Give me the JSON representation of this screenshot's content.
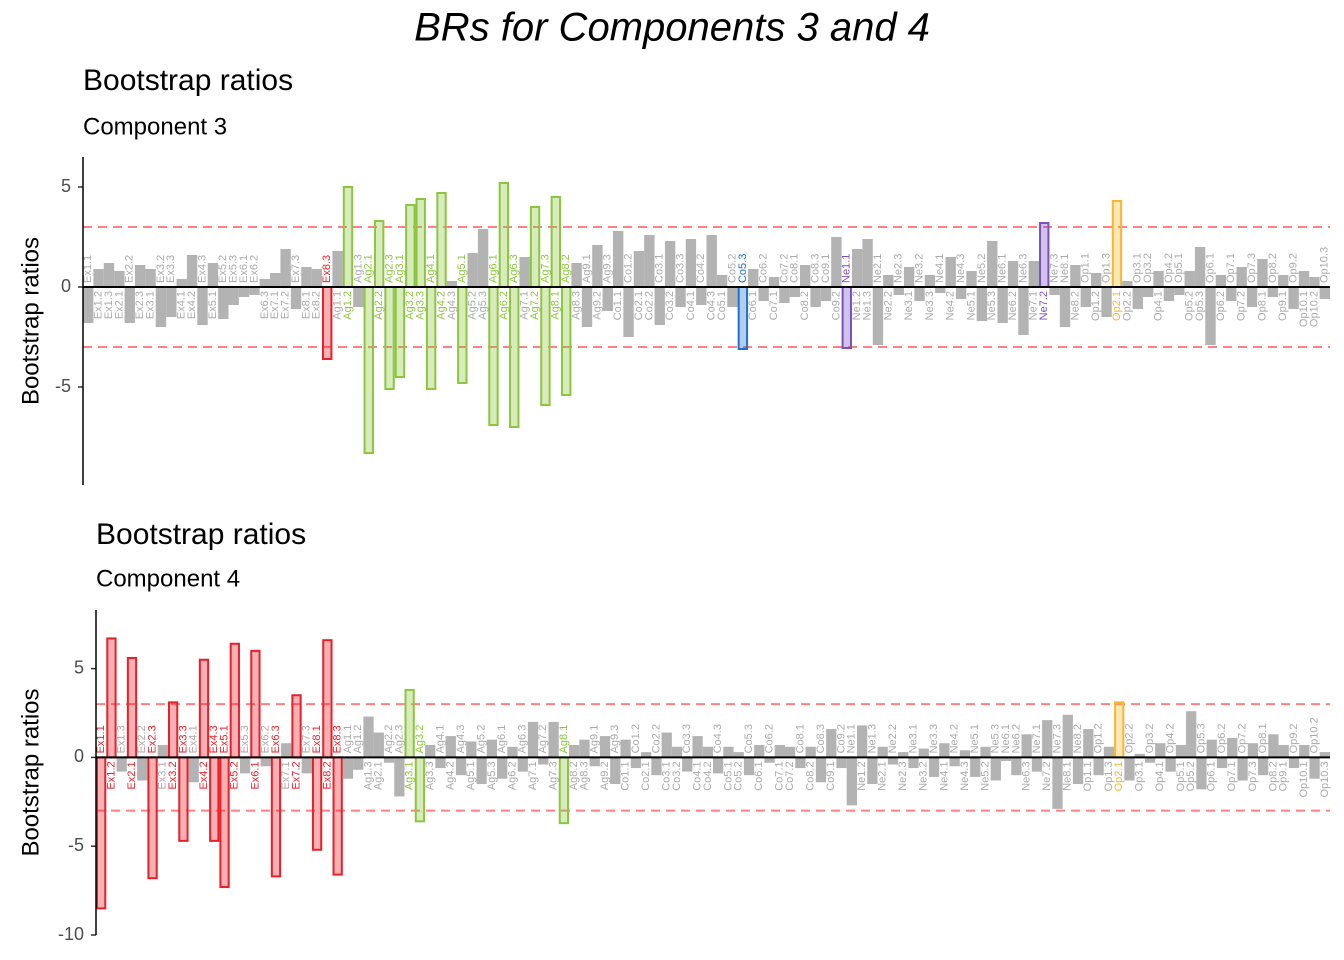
{
  "title": "BRs for Components 3 and 4",
  "chart_data": [
    {
      "type": "bar",
      "title": "Bootstrap ratios",
      "subtitle": "Component 3",
      "y_label": "Bootstrap ratios",
      "categories": [
        "Ex1.1",
        "Ex1.2",
        "Ex1.3",
        "Ex2.1",
        "Ex2.2",
        "Ex2.3",
        "Ex3.1",
        "Ex3.2",
        "Ex3.3",
        "Ex4.1",
        "Ex4.2",
        "Ex4.3",
        "Ex5.1",
        "Ex5.2",
        "Ex5.3",
        "Ex6.1",
        "Ex6.2",
        "Ex6.3",
        "Ex7.1",
        "Ex7.2",
        "Ex7.3",
        "Ex8.1",
        "Ex8.2",
        "Ex8.3",
        "Ag1.1",
        "Ag1.2",
        "Ag1.3",
        "Ag2.1",
        "Ag2.2",
        "Ag2.3",
        "Ag3.1",
        "Ag3.2",
        "Ag3.3",
        "Ag4.1",
        "Ag4.2",
        "Ag4.3",
        "Ag5.1",
        "Ag5.2",
        "Ag5.3",
        "Ag6.1",
        "Ag6.2",
        "Ag6.3",
        "Ag7.1",
        "Ag7.2",
        "Ag7.3",
        "Ag8.1",
        "Ag8.2",
        "Ag8.3",
        "Ag9.1",
        "Ag9.2",
        "Ag9.3",
        "Co1.1",
        "Co1.2",
        "Co2.1",
        "Co2.2",
        "Co3.1",
        "Co3.2",
        "Co3.3",
        "Co4.1",
        "Co4.2",
        "Co4.3",
        "Co5.1",
        "Co5.2",
        "Co5.3",
        "Co6.1",
        "Co6.2",
        "Co7.1",
        "Co7.2",
        "Co8.1",
        "Co8.2",
        "Co8.3",
        "Co9.1",
        "Co9.2",
        "Ne1.1",
        "Ne1.2",
        "Ne1.3",
        "Ne2.1",
        "Ne2.2",
        "Ne2.3",
        "Ne3.1",
        "Ne3.2",
        "Ne3.3",
        "Ne4.1",
        "Ne4.2",
        "Ne4.3",
        "Ne5.1",
        "Ne5.2",
        "Ne5.3",
        "Ne6.1",
        "Ne6.2",
        "Ne6.3",
        "Ne7.1",
        "Ne7.2",
        "Ne7.3",
        "Ne8.1",
        "Ne8.2",
        "Op1.1",
        "Op1.2",
        "Op1.3",
        "Op2.1",
        "Op2.2",
        "Op3.1",
        "Op3.2",
        "Op4.1",
        "Op4.2",
        "Op5.1",
        "Op5.2",
        "Op5.3",
        "Op6.1",
        "Op6.2",
        "Op7.1",
        "Op7.2",
        "Op7.3",
        "Op8.1",
        "Op8.2",
        "Op9.1",
        "Op9.2",
        "Op10.1",
        "Op10.2",
        "Op10.3"
      ],
      "values": [
        -1.8,
        0.9,
        1.2,
        0.8,
        -1.8,
        1.1,
        0.9,
        -2.0,
        -1.5,
        0.4,
        1.6,
        -1.9,
        1.2,
        -1.6,
        -0.9,
        -0.5,
        -0.4,
        0.4,
        0.7,
        1.9,
        -1.1,
        1.0,
        0.9,
        -3.6,
        1.8,
        5.0,
        -1.0,
        -8.3,
        3.3,
        -5.1,
        -4.5,
        4.1,
        4.4,
        -5.1,
        4.7,
        0.3,
        -4.8,
        1.7,
        2.9,
        -6.9,
        5.2,
        -7.0,
        1.5,
        4.0,
        -5.9,
        4.5,
        -5.4,
        1.2,
        -2.0,
        2.1,
        -1.2,
        2.8,
        -2.5,
        1.8,
        2.6,
        -1.9,
        2.3,
        -1.0,
        2.4,
        -0.9,
        2.6,
        0.6,
        -1.0,
        -3.1,
        0.9,
        -0.7,
        0.5,
        -0.8,
        -0.5,
        1.1,
        -1.0,
        -0.7,
        2.5,
        -3.05,
        1.9,
        2.4,
        -2.9,
        0.6,
        -0.4,
        1.0,
        -0.7,
        0.6,
        -0.3,
        1.5,
        -0.6,
        0.8,
        -1.7,
        2.3,
        -1.8,
        1.3,
        -2.4,
        1.3,
        3.2,
        -0.4,
        -2.0,
        1.1,
        -1.0,
        0.7,
        -1.5,
        4.3,
        0.3,
        -1.1,
        -0.5,
        0.8,
        -0.7,
        -0.4,
        0.8,
        2.0,
        -2.9,
        0.6,
        -0.7,
        1.0,
        -1.0,
        1.4,
        -0.5,
        0.6,
        -1.1,
        0.8,
        0.5,
        -0.6
      ],
      "ylim": [
        -9.9,
        6.5
      ],
      "yticks": [
        -5,
        0,
        5
      ],
      "thresholds": [
        -3,
        3
      ],
      "group_colors": {
        "Ex": "#e8202a",
        "Ag": "#8cc63f",
        "Co": "#1f6fd0",
        "Ne": "#7b4fc0",
        "Op": "#f5b82e"
      },
      "neutral_color": "#b3b3b3"
    },
    {
      "type": "bar",
      "title": "Bootstrap ratios",
      "subtitle": "Component 4",
      "y_label": "Bootstrap ratios",
      "categories": [
        "Ex1.1",
        "Ex1.2",
        "Ex1.3",
        "Ex2.1",
        "Ex2.2",
        "Ex2.3",
        "Ex3.1",
        "Ex3.2",
        "Ex3.3",
        "Ex4.1",
        "Ex4.2",
        "Ex4.3",
        "Ex5.1",
        "Ex5.2",
        "Ex5.3",
        "Ex6.1",
        "Ex6.2",
        "Ex6.3",
        "Ex7.1",
        "Ex7.2",
        "Ex7.3",
        "Ex8.1",
        "Ex8.2",
        "Ex8.3",
        "Ag1.1",
        "Ag1.2",
        "Ag1.3",
        "Ag2.1",
        "Ag2.2",
        "Ag2.3",
        "Ag3.1",
        "Ag3.2",
        "Ag3.3",
        "Ag4.1",
        "Ag4.2",
        "Ag4.3",
        "Ag5.1",
        "Ag5.2",
        "Ag5.3",
        "Ag6.1",
        "Ag6.2",
        "Ag6.3",
        "Ag7.1",
        "Ag7.2",
        "Ag7.3",
        "Ag8.1",
        "Ag8.2",
        "Ag8.3",
        "Ag9.1",
        "Ag9.2",
        "Ag9.3",
        "Co1.1",
        "Co1.2",
        "Co2.1",
        "Co2.2",
        "Co3.1",
        "Co3.2",
        "Co3.3",
        "Co4.1",
        "Co4.2",
        "Co4.3",
        "Co5.1",
        "Co5.2",
        "Co5.3",
        "Co6.1",
        "Co6.2",
        "Co7.1",
        "Co7.2",
        "Co8.1",
        "Co8.2",
        "Co8.3",
        "Co9.1",
        "Co9.2",
        "Ne1.1",
        "Ne1.2",
        "Ne1.3",
        "Ne2.1",
        "Ne2.2",
        "Ne2.3",
        "Ne3.1",
        "Ne3.2",
        "Ne3.3",
        "Ne4.1",
        "Ne4.2",
        "Ne4.3",
        "Ne5.1",
        "Ne5.2",
        "Ne5.3",
        "Ne6.1",
        "Ne6.2",
        "Ne6.3",
        "Ne7.1",
        "Ne7.2",
        "Ne7.3",
        "Ne8.1",
        "Ne8.2",
        "Op1.1",
        "Op1.2",
        "Op1.3",
        "Op2.1",
        "Op2.2",
        "Op3.1",
        "Op3.2",
        "Op4.1",
        "Op4.2",
        "Op5.1",
        "Op5.2",
        "Op5.3",
        "Op6.1",
        "Op6.2",
        "Op7.1",
        "Op7.2",
        "Op7.3",
        "Op8.1",
        "Op8.2",
        "Op9.1",
        "Op9.2",
        "Op10.1",
        "Op10.2",
        "Op10.3"
      ],
      "values": [
        -8.5,
        6.7,
        -0.8,
        5.6,
        -1.3,
        -6.8,
        0.7,
        3.1,
        -4.7,
        -1.4,
        5.5,
        -4.7,
        -7.3,
        6.4,
        -0.9,
        6.0,
        -0.5,
        -6.7,
        0.8,
        3.5,
        -0.9,
        -5.2,
        6.6,
        -6.6,
        -1.2,
        -0.7,
        2.3,
        1.4,
        -0.3,
        -2.2,
        3.8,
        -3.6,
        0.7,
        -0.6,
        1.2,
        -1.0,
        0.9,
        -1.5,
        1.0,
        -1.2,
        0.6,
        -0.8,
        2.0,
        -0.4,
        2.0,
        -3.7,
        0.7,
        1.0,
        -0.5,
        1.2,
        -1.5,
        1.0,
        -0.6,
        0.3,
        -1.0,
        1.4,
        0.6,
        -0.8,
        1.2,
        0.6,
        -0.9,
        0.6,
        0.3,
        -1.0,
        0.7,
        -0.3,
        0.7,
        0.6,
        -0.6,
        0.6,
        -1.4,
        1.6,
        -0.6,
        -2.7,
        1.8,
        -1.5,
        0.6,
        -0.4,
        0.3,
        -0.6,
        0.5,
        -1.1,
        0.8,
        -0.5,
        0.4,
        -1.1,
        0.6,
        -1.3,
        -0.2,
        -1.0,
        1.3,
        -0.8,
        2.1,
        -2.9,
        2.4,
        -1.5,
        1.6,
        -1.0,
        0.6,
        3.1,
        -1.3,
        0.2,
        -0.3,
        0.8,
        -0.8,
        0.7,
        2.6,
        -1.8,
        1.0,
        -0.6,
        1.1,
        -1.3,
        0.8,
        -1.0,
        1.3,
        0.7,
        -0.6,
        0.7,
        -1.2,
        0.3
      ],
      "ylim": [
        -10,
        8.3
      ],
      "yticks": [
        -10,
        -5,
        0,
        5
      ],
      "thresholds": [
        -3,
        3
      ],
      "group_colors": {
        "Ex": "#e8202a",
        "Ag": "#8cc63f",
        "Co": "#1f6fd0",
        "Ne": "#7b4fc0",
        "Op": "#f5b82e"
      },
      "neutral_color": "#b3b3b3"
    }
  ]
}
